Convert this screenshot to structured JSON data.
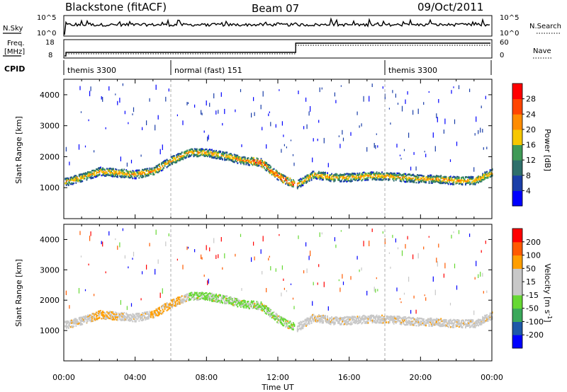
{
  "header": {
    "radar": "Blackstone (fitACF)",
    "beam": "Beam 07",
    "date": "09/Oct/2011"
  },
  "top_panels": {
    "nsky_label": "N.Sky",
    "nsearch_label": "N.Search",
    "freq_label_line1": "Freq.",
    "freq_label_line2": "[MHz]",
    "nave_label": "Nave",
    "cpid_label": "CPID",
    "noise_ticks": [
      "10^5",
      "10^0"
    ],
    "freq_ticks": [
      "18",
      "8"
    ],
    "nave_ticks": [
      "60",
      "0"
    ],
    "cpid_segments": [
      {
        "label": "themis 3300",
        "start_hour": 0
      },
      {
        "label": "normal (fast) 151",
        "start_hour": 6
      },
      {
        "label": "themis 3300",
        "start_hour": 18
      }
    ]
  },
  "colors": {
    "power_scale": [
      "#0000ff",
      "#1a3ea8",
      "#2e6f6b",
      "#3f9a56",
      "#f7c700",
      "#ff8c00",
      "#ff4500",
      "#ff0000"
    ],
    "velocity_scale": [
      "#ff0000",
      "#ff5a00",
      "#ff9e00",
      "#c8c8c8",
      "#c8c8c8",
      "#66d833",
      "#3aa85a",
      "#1d58a8",
      "#0000ff"
    ]
  },
  "chart_data": [
    {
      "type": "heatmap",
      "panel": "power",
      "ylabel": "Slant Range [km]",
      "xlabel": "Time UT",
      "x_ticks": [
        "00:00",
        "04:00",
        "08:00",
        "12:00",
        "16:00",
        "20:00",
        "00:00"
      ],
      "xlim_hours": [
        0,
        24
      ],
      "ylim": [
        0,
        4500
      ],
      "y_ticks": [
        "1000",
        "2000",
        "3000",
        "4000"
      ],
      "colorbar_label": "Power [dB]",
      "colorbar_ticks": [
        "4",
        "8",
        "12",
        "16",
        "20",
        "24",
        "28"
      ],
      "colorbar_range": [
        0,
        32
      ],
      "echo_band": {
        "hours": [
          0,
          1,
          2,
          3,
          4,
          5,
          6,
          7,
          8,
          9,
          10,
          11,
          12,
          13,
          14,
          15,
          16,
          17,
          18,
          19,
          20,
          21,
          22,
          23,
          24
        ],
        "range_km": [
          1200,
          1350,
          1550,
          1500,
          1450,
          1550,
          1900,
          2150,
          2150,
          2050,
          1900,
          1850,
          1400,
          1100,
          1450,
          1350,
          1350,
          1400,
          1400,
          1350,
          1300,
          1300,
          1250,
          1250,
          1500
        ]
      }
    },
    {
      "type": "heatmap",
      "panel": "velocity",
      "ylabel": "Slant Range [km]",
      "xlabel": "Time UT",
      "x_ticks": [
        "00:00",
        "04:00",
        "08:00",
        "12:00",
        "16:00",
        "20:00",
        "00:00"
      ],
      "xlim_hours": [
        0,
        24
      ],
      "ylim": [
        0,
        4500
      ],
      "y_ticks": [
        "1000",
        "2000",
        "3000",
        "4000"
      ],
      "colorbar_label": "Velocity [m s^-1]",
      "colorbar_ticks": [
        "200",
        "100",
        "50",
        "15",
        "-15",
        "-50",
        "-100",
        "-200"
      ],
      "colorbar_range": [
        -250,
        250
      ]
    }
  ]
}
